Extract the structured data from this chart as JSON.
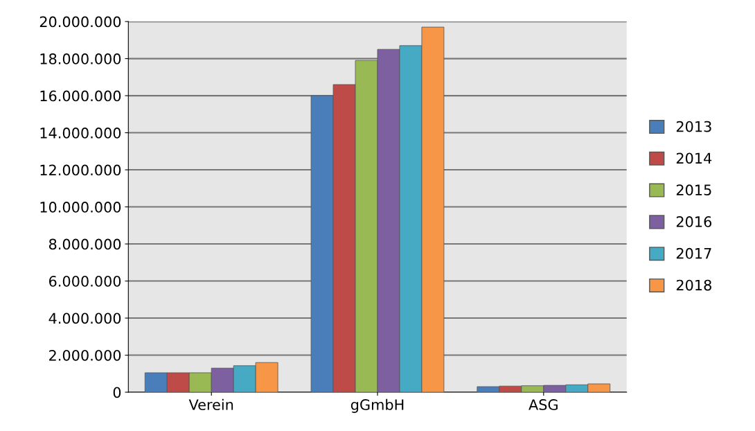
{
  "chart_data": {
    "type": "bar",
    "categories": [
      "Verein",
      "gGmbH",
      "ASG"
    ],
    "series": [
      {
        "name": "2013",
        "color": "#4a7ebb",
        "values": [
          1050000,
          16000000,
          300000
        ]
      },
      {
        "name": "2014",
        "color": "#be4b48",
        "values": [
          1050000,
          16600000,
          330000
        ]
      },
      {
        "name": "2015",
        "color": "#98b954",
        "values": [
          1050000,
          17900000,
          350000
        ]
      },
      {
        "name": "2016",
        "color": "#7d60a0",
        "values": [
          1300000,
          18500000,
          370000
        ]
      },
      {
        "name": "2017",
        "color": "#46aac5",
        "values": [
          1430000,
          18700000,
          400000
        ]
      },
      {
        "name": "2018",
        "color": "#f79646",
        "values": [
          1600000,
          19700000,
          450000
        ]
      }
    ],
    "ylim": [
      0,
      20000000
    ],
    "yticks": [
      {
        "value": 0,
        "label": "0"
      },
      {
        "value": 2000000,
        "label": "2.000.000"
      },
      {
        "value": 4000000,
        "label": "4.000.000"
      },
      {
        "value": 6000000,
        "label": "6.000.000"
      },
      {
        "value": 8000000,
        "label": "8.000.000"
      },
      {
        "value": 10000000,
        "label": "10.000.000"
      },
      {
        "value": 12000000,
        "label": "12.000.000"
      },
      {
        "value": 14000000,
        "label": "14.000.000"
      },
      {
        "value": 16000000,
        "label": "16.000.000"
      },
      {
        "value": 18000000,
        "label": "18.000.000"
      },
      {
        "value": 20000000,
        "label": "20.000.000"
      }
    ],
    "grid": "y",
    "legend": "right"
  }
}
